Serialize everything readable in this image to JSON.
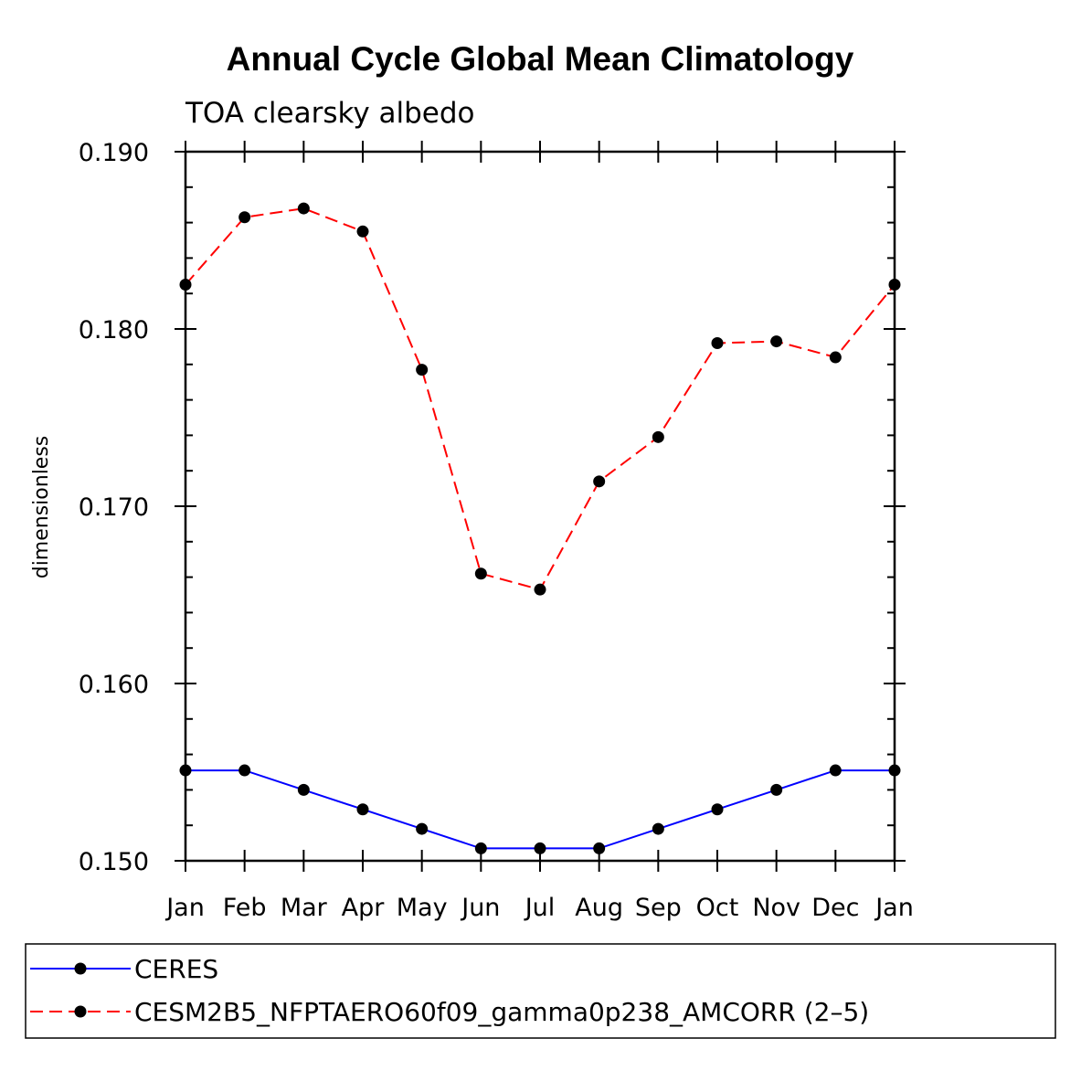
{
  "chart_data": {
    "type": "line",
    "title": "Annual Cycle Global Mean Climatology",
    "subtitle": "TOA clearsky albedo",
    "ylabel": "dimensionless",
    "xlabel": "",
    "categories": [
      "Jan",
      "Feb",
      "Mar",
      "Apr",
      "May",
      "Jun",
      "Jul",
      "Aug",
      "Sep",
      "Oct",
      "Nov",
      "Dec",
      "Jan"
    ],
    "ylim": [
      0.15,
      0.19
    ],
    "yticks": [
      "0.150",
      "0.160",
      "0.170",
      "0.180",
      "0.190"
    ],
    "grid": false,
    "legend_position": "bottom",
    "series": [
      {
        "name": "CERES",
        "color": "#0000ff",
        "style": "solid",
        "values": [
          0.1551,
          0.1551,
          0.154,
          0.1529,
          0.1518,
          0.1507,
          0.1507,
          0.1507,
          0.1518,
          0.1529,
          0.154,
          0.1551,
          0.1551
        ]
      },
      {
        "name": "CESM2B5_NFPTAERO60f09_gamma0p238_AMCORR (2–5)",
        "color": "#ff0000",
        "style": "dashed",
        "values": [
          0.1825,
          0.1863,
          0.1868,
          0.1855,
          0.1777,
          0.1662,
          0.1653,
          0.1714,
          0.1739,
          0.1792,
          0.1793,
          0.1784,
          0.1825
        ]
      }
    ]
  }
}
